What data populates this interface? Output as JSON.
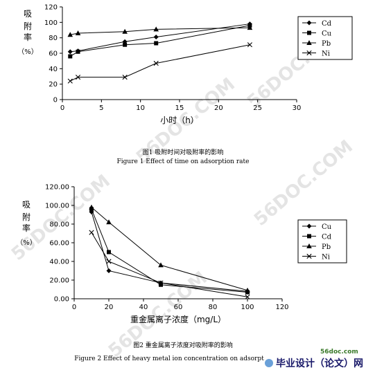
{
  "watermark": "56DOC.COM",
  "footer": {
    "site": "56doc.com",
    "brand": "毕业设计（论文）网"
  },
  "chart_data": [
    {
      "type": "line",
      "ylabel": "吸附率（%）",
      "xlabel": "小时（h）",
      "xlim": [
        0,
        30
      ],
      "ylim": [
        0,
        120
      ],
      "xticks": [
        0,
        5,
        10,
        15,
        20,
        25,
        30
      ],
      "yticks": [
        0,
        20,
        40,
        60,
        80,
        100,
        120
      ],
      "legend": "right",
      "caption_cn": "图1 吸附时间对吸附率的影响",
      "caption_en": "Figure 1 Effect of time on adsorption rate",
      "series": [
        {
          "name": "Cd",
          "marker": "diamond",
          "points": [
            [
              1,
              62
            ],
            [
              2,
              63
            ],
            [
              8,
              75
            ],
            [
              12,
              81
            ],
            [
              24,
              98
            ]
          ]
        },
        {
          "name": "Cu",
          "marker": "square",
          "points": [
            [
              1,
              56
            ],
            [
              2,
              62
            ],
            [
              8,
              71
            ],
            [
              12,
              73
            ],
            [
              24,
              96
            ]
          ]
        },
        {
          "name": "Pb",
          "marker": "triangle",
          "points": [
            [
              1,
              84
            ],
            [
              2,
              86
            ],
            [
              8,
              88
            ],
            [
              12,
              91
            ],
            [
              24,
              93
            ]
          ]
        },
        {
          "name": "Ni",
          "marker": "x",
          "points": [
            [
              1,
              24
            ],
            [
              2,
              29
            ],
            [
              8,
              29
            ],
            [
              12,
              47
            ],
            [
              24,
              71
            ]
          ]
        }
      ]
    },
    {
      "type": "line",
      "ylabel": "吸附率（%）",
      "xlabel": "重金属离子浓度（mg/L）",
      "xlim": [
        0,
        120
      ],
      "ylim": [
        0,
        120
      ],
      "xticks": [
        0,
        20,
        40,
        60,
        80,
        100,
        120
      ],
      "yticks": [
        "0.00",
        "20.00",
        "40.00",
        "60.00",
        "80.00",
        "100.00",
        "120.00"
      ],
      "legend": "right",
      "caption_cn": "图2 重金属离子浓度对吸附率的影响",
      "caption_en": "Figure 2 Effect of heavy metal ion concentration on adsorpt",
      "series": [
        {
          "name": "Cu",
          "marker": "diamond",
          "points": [
            [
              10,
              93
            ],
            [
              20,
              30
            ],
            [
              50,
              17
            ],
            [
              100,
              8
            ]
          ]
        },
        {
          "name": "Cd",
          "marker": "square",
          "points": [
            [
              10,
              96
            ],
            [
              20,
              50
            ],
            [
              50,
              15
            ],
            [
              100,
              7
            ]
          ]
        },
        {
          "name": "Pb",
          "marker": "triangle",
          "points": [
            [
              10,
              98
            ],
            [
              20,
              82
            ],
            [
              50,
              36
            ],
            [
              100,
              9
            ]
          ]
        },
        {
          "name": "Ni",
          "marker": "x",
          "points": [
            [
              10,
              71
            ],
            [
              20,
              40
            ],
            [
              50,
              17
            ],
            [
              100,
              2
            ]
          ]
        }
      ]
    }
  ]
}
